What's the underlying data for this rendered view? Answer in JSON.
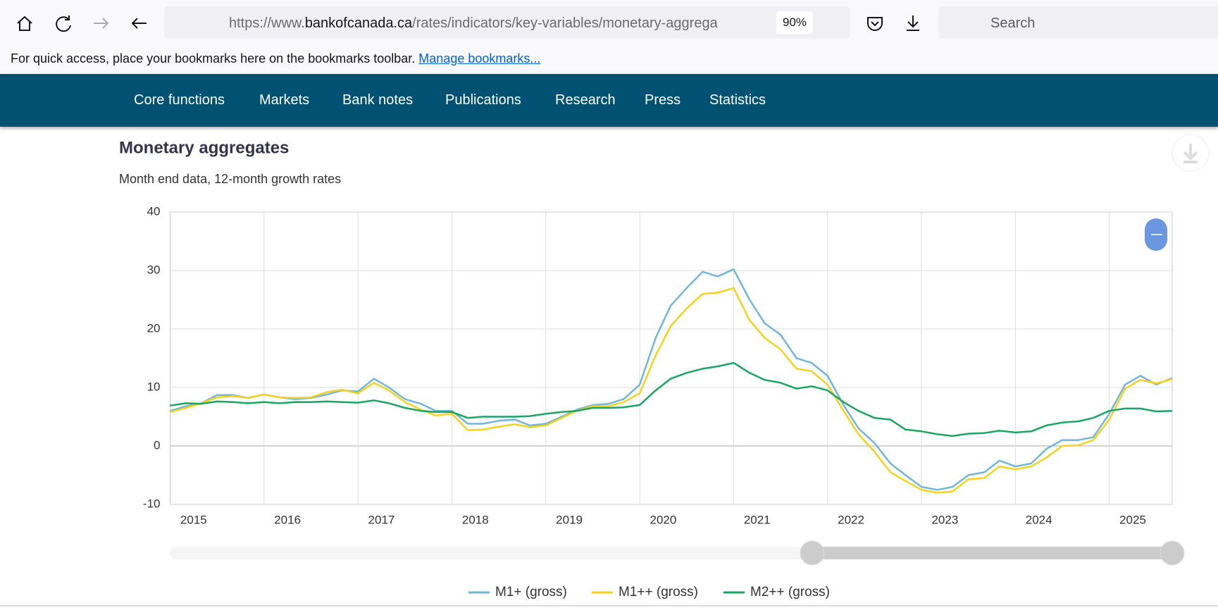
{
  "browser": {
    "url_parts": [
      "https://www.",
      "bankofcanada.ca",
      "/rates/indicators/key-variables/monetary-aggrega"
    ],
    "zoom": "90%",
    "search": "Search"
  },
  "bookmarks_bar": {
    "text": "For quick access, place your bookmarks here on the bookmarks toolbar.",
    "link": "Manage bookmarks..."
  },
  "nav": [
    "Core functions",
    "Markets",
    "Bank notes",
    "Publications",
    "Research",
    "Press",
    "Statistics"
  ],
  "chart_data": {
    "type": "line",
    "title": "Monetary aggregates",
    "subtitle": "Month end data, 12-month growth rates",
    "x": [
      2015,
      2015.17,
      2015.33,
      2015.5,
      2015.67,
      2015.83,
      2016,
      2016.17,
      2016.33,
      2016.5,
      2016.67,
      2016.83,
      2017,
      2017.17,
      2017.33,
      2017.5,
      2017.67,
      2017.83,
      2018,
      2018.17,
      2018.33,
      2018.5,
      2018.67,
      2018.83,
      2019,
      2019.17,
      2019.33,
      2019.5,
      2019.67,
      2019.83,
      2020,
      2020.17,
      2020.33,
      2020.5,
      2020.67,
      2020.83,
      2021,
      2021.17,
      2021.33,
      2021.5,
      2021.67,
      2021.83,
      2022,
      2022.17,
      2022.33,
      2022.5,
      2022.67,
      2022.83,
      2023,
      2023.17,
      2023.33,
      2023.5,
      2023.67,
      2023.83,
      2024,
      2024.17,
      2024.33,
      2024.5,
      2024.67,
      2024.83,
      2025,
      2025.17,
      2025.33,
      2025.5,
      2025.67
    ],
    "series": [
      {
        "name": "M1+ (gross)",
        "color": "#72b6d9",
        "values": [
          6,
          6.8,
          7.3,
          8.7,
          8.7,
          8.2,
          8.8,
          8.3,
          8.0,
          8.2,
          8.8,
          9.5,
          9.3,
          11.5,
          10.0,
          8.0,
          7.2,
          6.0,
          6.0,
          3.8,
          3.8,
          4.3,
          4.5,
          3.5,
          3.8,
          5.0,
          6.2,
          7.0,
          7.2,
          8.0,
          10.5,
          18.5,
          24,
          27,
          29.8,
          29,
          30.2,
          25,
          21,
          19,
          15,
          14.2,
          12,
          7,
          3,
          0.5,
          -3,
          -5,
          -7,
          -7.5,
          -7,
          -5,
          -4.5,
          -2.5,
          -3.5,
          -3,
          -0.5,
          1,
          1,
          1.5,
          5.5,
          10.5,
          12,
          10.5,
          11.6
        ]
      },
      {
        "name": "M1++ (gross)",
        "color": "#f5d21b",
        "values": [
          5.8,
          6.5,
          7.3,
          8.3,
          8.5,
          8.2,
          8.8,
          8.3,
          8.2,
          8.3,
          9.2,
          9.6,
          9.0,
          10.8,
          9.5,
          7.5,
          6.2,
          5.2,
          5.5,
          2.7,
          2.8,
          3.3,
          3.7,
          3.2,
          3.5,
          4.8,
          6.0,
          6.8,
          6.8,
          7.5,
          9.0,
          15.5,
          20.5,
          23.5,
          26,
          26.2,
          27,
          21.5,
          18.5,
          16.5,
          13.2,
          12.8,
          10.5,
          6,
          2,
          -1,
          -4.5,
          -6,
          -7.5,
          -8,
          -7.8,
          -5.7,
          -5.5,
          -3.5,
          -4,
          -3.5,
          -2.0,
          0,
          0.1,
          1.0,
          4.5,
          9.8,
          11.3,
          10.7,
          11.4
        ]
      },
      {
        "name": "M2++ (gross)",
        "color": "#1aa562",
        "values": [
          6.9,
          7.3,
          7.2,
          7.6,
          7.5,
          7.3,
          7.5,
          7.3,
          7.5,
          7.5,
          7.6,
          7.5,
          7.4,
          7.8,
          7.3,
          6.5,
          6.0,
          5.8,
          5.8,
          4.8,
          5.0,
          5.0,
          5.0,
          5.1,
          5.5,
          5.8,
          6.0,
          6.5,
          6.5,
          6.6,
          7.0,
          9.5,
          11.5,
          12.5,
          13.2,
          13.6,
          14.2,
          12.5,
          11.3,
          10.8,
          9.8,
          10.2,
          9.5,
          7.5,
          6.0,
          4.8,
          4.5,
          2.8,
          2.5,
          2.0,
          1.7,
          2.1,
          2.2,
          2.6,
          2.3,
          2.5,
          3.5,
          4.0,
          4.2,
          4.8,
          6.0,
          6.4,
          6.4,
          5.9,
          6.0
        ]
      }
    ],
    "xlim": [
      2015,
      2025.67
    ],
    "xticks": [
      2015,
      2016,
      2017,
      2018,
      2019,
      2020,
      2021,
      2022,
      2023,
      2024,
      2025
    ],
    "ylim": [
      -10,
      40
    ],
    "yticks": [
      -10,
      0,
      10,
      20,
      30,
      40
    ],
    "grid": true
  }
}
